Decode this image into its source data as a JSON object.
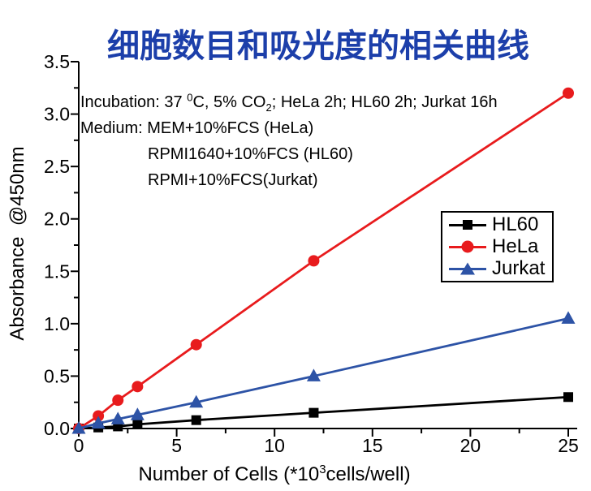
{
  "title": "细胞数目和吸光度的相关曲线",
  "annotation": {
    "line1": {
      "pre": "Incubation: 37 ",
      "sup": "0",
      "mid": "C, 5% CO",
      "sub": "2",
      "post": "; HeLa 2h; HL60 2h; Jurkat 16h"
    },
    "line2": "Medium: MEM+10%FCS (HeLa)",
    "line3": "RPMI1640+10%FCS (HL60)",
    "line4": "RPMI+10%FCS(Jurkat)"
  },
  "axes": {
    "ylabel": "Absorbance  @450nm",
    "xlabel": {
      "pre": "Number of Cells (*10",
      "sup": "3",
      "post": "cells/well)"
    }
  },
  "chart_data": {
    "type": "line",
    "title": "细胞数目和吸光度的相关曲线",
    "xlabel": "Number of Cells (*10^3 cells/well)",
    "ylabel": "Absorbance @450nm",
    "x": [
      0,
      1,
      2,
      3,
      6,
      12,
      25
    ],
    "series": [
      {
        "name": "HL60",
        "color": "#000000",
        "marker": "square",
        "values": [
          0,
          0.01,
          0.02,
          0.04,
          0.08,
          0.15,
          0.3
        ]
      },
      {
        "name": "HeLa",
        "color": "#e81b1d",
        "marker": "circle",
        "values": [
          0,
          0.12,
          0.27,
          0.4,
          0.8,
          1.6,
          3.2
        ]
      },
      {
        "name": "Jurkat",
        "color": "#2d53a6",
        "marker": "triangle",
        "values": [
          0,
          0.05,
          0.09,
          0.13,
          0.25,
          0.5,
          1.05
        ]
      }
    ],
    "xlim": [
      0,
      25
    ],
    "ylim": [
      0,
      3.5
    ],
    "x_ticks": [
      0,
      5,
      10,
      15,
      20,
      25
    ],
    "y_ticks": [
      "0.0",
      "0.5",
      "1.0",
      "1.5",
      "2.0",
      "2.5",
      "3.0",
      "3.5"
    ],
    "x_minor_step": 2.5,
    "y_minor_step": 0.25,
    "grid": false,
    "legend_position": "right-middle"
  },
  "colors": {
    "title_blue": "#1c3faa",
    "hela_red": "#e81b1d",
    "jurkat_blue": "#2d53a6",
    "hl60_black": "#000000"
  }
}
